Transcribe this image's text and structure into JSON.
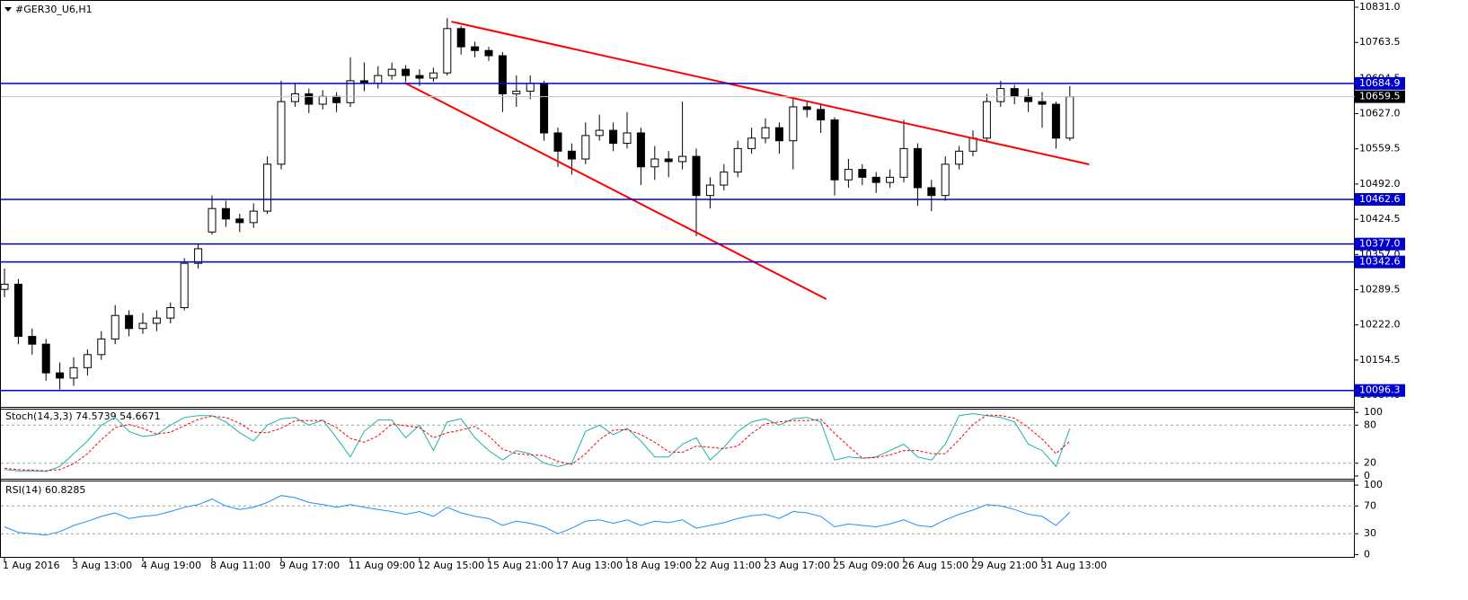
{
  "chart_data": {
    "type": "candlestick",
    "title": "#GER30_U6,H1",
    "x_labels": [
      "1 Aug 2016",
      "3 Aug 13:00",
      "4 Aug 19:00",
      "8 Aug 11:00",
      "9 Aug 17:00",
      "11 Aug 09:00",
      "12 Aug 15:00",
      "15 Aug 21:00",
      "17 Aug 13:00",
      "18 Aug 19:00",
      "22 Aug 11:00",
      "23 Aug 17:00",
      "25 Aug 09:00",
      "26 Aug 15:00",
      "29 Aug 21:00",
      "31 Aug 13:00"
    ],
    "open": [
      10290,
      10300,
      10200,
      10185,
      10130,
      10120,
      10140,
      10165,
      10195,
      10240,
      10215,
      10225,
      10235,
      10255,
      10340,
      10400,
      10445,
      10425,
      10418,
      10440,
      10530,
      10650,
      10665,
      10645,
      10660,
      10648,
      10690,
      10685,
      10700,
      10712,
      10700,
      10695,
      10705,
      10790,
      10755,
      10748,
      10738,
      10665,
      10670,
      10685,
      10590,
      10555,
      10540,
      10585,
      10595,
      10570,
      10590,
      10525,
      10540,
      10535,
      10545,
      10470,
      10490,
      10515,
      10560,
      10580,
      10600,
      10575,
      10640,
      10635,
      10615,
      10500,
      10520,
      10505,
      10495,
      10505,
      10560,
      10485,
      10470,
      10530,
      10555,
      10580,
      10650,
      10675,
      10660,
      10650,
      10645,
      10580
    ],
    "high": [
      10330,
      10310,
      10215,
      10195,
      10150,
      10160,
      10175,
      10210,
      10260,
      10250,
      10245,
      10250,
      10265,
      10350,
      10378,
      10470,
      10460,
      10435,
      10455,
      10545,
      10690,
      10685,
      10675,
      10672,
      10668,
      10735,
      10725,
      10718,
      10725,
      10720,
      10712,
      10715,
      10810,
      10795,
      10765,
      10755,
      10745,
      10700,
      10700,
      10690,
      10600,
      10570,
      10610,
      10625,
      10610,
      10630,
      10600,
      10565,
      10555,
      10650,
      10560,
      10505,
      10530,
      10575,
      10600,
      10618,
      10610,
      10655,
      10652,
      10645,
      10620,
      10540,
      10530,
      10515,
      10520,
      10615,
      10570,
      10500,
      10545,
      10565,
      10595,
      10665,
      10690,
      10682,
      10675,
      10668,
      10650,
      10680
    ],
    "low": [
      10275,
      10185,
      10165,
      10115,
      10098,
      10105,
      10125,
      10155,
      10185,
      10200,
      10205,
      10210,
      10225,
      10250,
      10330,
      10395,
      10410,
      10400,
      10408,
      10435,
      10520,
      10640,
      10628,
      10635,
      10630,
      10640,
      10670,
      10675,
      10692,
      10688,
      10680,
      10688,
      10700,
      10740,
      10735,
      10728,
      10630,
      10640,
      10655,
      10575,
      10525,
      10510,
      10530,
      10575,
      10555,
      10560,
      10490,
      10500,
      10505,
      10520,
      10392,
      10445,
      10480,
      10505,
      10550,
      10570,
      10550,
      10520,
      10620,
      10590,
      10470,
      10485,
      10490,
      10475,
      10485,
      10495,
      10450,
      10440,
      10460,
      10520,
      10545,
      10575,
      10640,
      10645,
      10630,
      10600,
      10560,
      10575
    ],
    "close": [
      10300,
      10200,
      10185,
      10130,
      10120,
      10140,
      10165,
      10195,
      10240,
      10215,
      10225,
      10235,
      10255,
      10340,
      10368,
      10445,
      10425,
      10418,
      10440,
      10530,
      10650,
      10665,
      10645,
      10660,
      10648,
      10690,
      10685,
      10700,
      10712,
      10700,
      10695,
      10705,
      10790,
      10755,
      10748,
      10738,
      10665,
      10670,
      10685,
      10590,
      10555,
      10540,
      10585,
      10595,
      10570,
      10590,
      10525,
      10540,
      10535,
      10545,
      10470,
      10490,
      10515,
      10560,
      10580,
      10600,
      10575,
      10640,
      10635,
      10615,
      10500,
      10520,
      10505,
      10495,
      10505,
      10560,
      10485,
      10470,
      10530,
      10555,
      10580,
      10650,
      10675,
      10660,
      10650,
      10645,
      10580,
      10659.5
    ],
    "color_up": "#ffffff",
    "color_down": "#000000",
    "ylim": [
      10066.5,
      10844.8
    ],
    "yticks": [
      {
        "value": 10831,
        "label": "10831.0"
      },
      10763.5,
      10694.5,
      {
        "value": 10627,
        "label": "10627.0"
      },
      10559.5,
      {
        "value": 10492,
        "label": "10492.0"
      },
      10424.5,
      {
        "value": 10357,
        "label": "10357.0"
      },
      10289.5,
      {
        "value": 10222,
        "label": "10222.0"
      },
      10154.5,
      {
        "value": 10087,
        "label": "10087.0"
      }
    ],
    "levels": [
      10684.9,
      10462.6,
      {
        "value": 10377,
        "label": "10377.0"
      },
      10342.6,
      10096.3
    ],
    "level_color": "#0000cd",
    "current_price": 10659.5,
    "trendlines": [
      {
        "x": [
          32.3,
          78.4
        ],
        "y": [
          10803.4,
          10529.7
        ],
        "color": "#ff0000"
      },
      {
        "x": [
          28.9,
          59.4
        ],
        "y": [
          10686.4,
          10271.4
        ],
        "color": "#ff0000"
      }
    ],
    "indicators": [
      {
        "type": "line",
        "title": "Stoch(14,3,3) 74.5739 54.6671",
        "ylim": [
          -3,
          103
        ],
        "yticks": [
          100,
          80,
          20,
          0
        ],
        "levels": [
          80,
          20
        ],
        "series": [
          {
            "color": "#20b2aa",
            "dashed": false,
            "values": [
              10,
              8,
              8,
              7,
              15,
              35,
              55,
              80,
              92,
              70,
              62,
              65,
              80,
              92,
              95,
              95,
              85,
              68,
              55,
              80,
              90,
              92,
              80,
              88,
              60,
              30,
              70,
              88,
              88,
              60,
              80,
              40,
              85,
              90,
              60,
              40,
              25,
              40,
              35,
              20,
              15,
              20,
              70,
              80,
              65,
              75,
              55,
              30,
              30,
              50,
              60,
              25,
              45,
              70,
              85,
              90,
              80,
              90,
              92,
              85,
              25,
              30,
              28,
              30,
              40,
              50,
              30,
              25,
              50,
              95,
              98,
              95,
              92,
              85,
              50,
              40,
              15,
              74.5739
            ]
          },
          {
            "color": "#ff0000",
            "dashed": true,
            "values": [
              12,
              10,
              9,
              8,
              10,
              19,
              35,
              57,
              76,
              81,
              75,
              66,
              69,
              79,
              89,
              94,
              92,
              83,
              69,
              68,
              75,
              87,
              87,
              87,
              76,
              59,
              53,
              63,
              82,
              79,
              76,
              60,
              68,
              72,
              78,
              63,
              42,
              35,
              33,
              32,
              23,
              18,
              35,
              57,
              72,
              73,
              65,
              53,
              38,
              37,
              47,
              45,
              43,
              47,
              67,
              82,
              85,
              87,
              87,
              89,
              67,
              47,
              28,
              29,
              33,
              40,
              40,
              35,
              35,
              57,
              81,
              96,
              95,
              91,
              76,
              58,
              35,
              54.6671
            ]
          }
        ]
      },
      {
        "type": "line",
        "title": "RSI(14) 60.8285",
        "ylim": [
          -2,
          104
        ],
        "yticks": [
          100,
          70,
          30,
          0
        ],
        "levels": [
          70,
          30
        ],
        "series": [
          {
            "color": "#1e90ff",
            "dashed": false,
            "values": [
              40,
              32,
              30,
              28,
              33,
              42,
              48,
              55,
              60,
              52,
              55,
              57,
              62,
              68,
              72,
              80,
              70,
              65,
              68,
              75,
              85,
              82,
              75,
              72,
              68,
              72,
              68,
              65,
              62,
              58,
              62,
              55,
              68,
              60,
              55,
              52,
              42,
              48,
              45,
              40,
              30,
              38,
              48,
              50,
              45,
              50,
              42,
              48,
              46,
              50,
              38,
              42,
              46,
              52,
              56,
              58,
              52,
              62,
              60,
              55,
              40,
              44,
              42,
              40,
              44,
              50,
              42,
              40,
              50,
              58,
              64,
              72,
              70,
              65,
              58,
              55,
              42,
              60.8285
            ]
          }
        ]
      }
    ]
  }
}
